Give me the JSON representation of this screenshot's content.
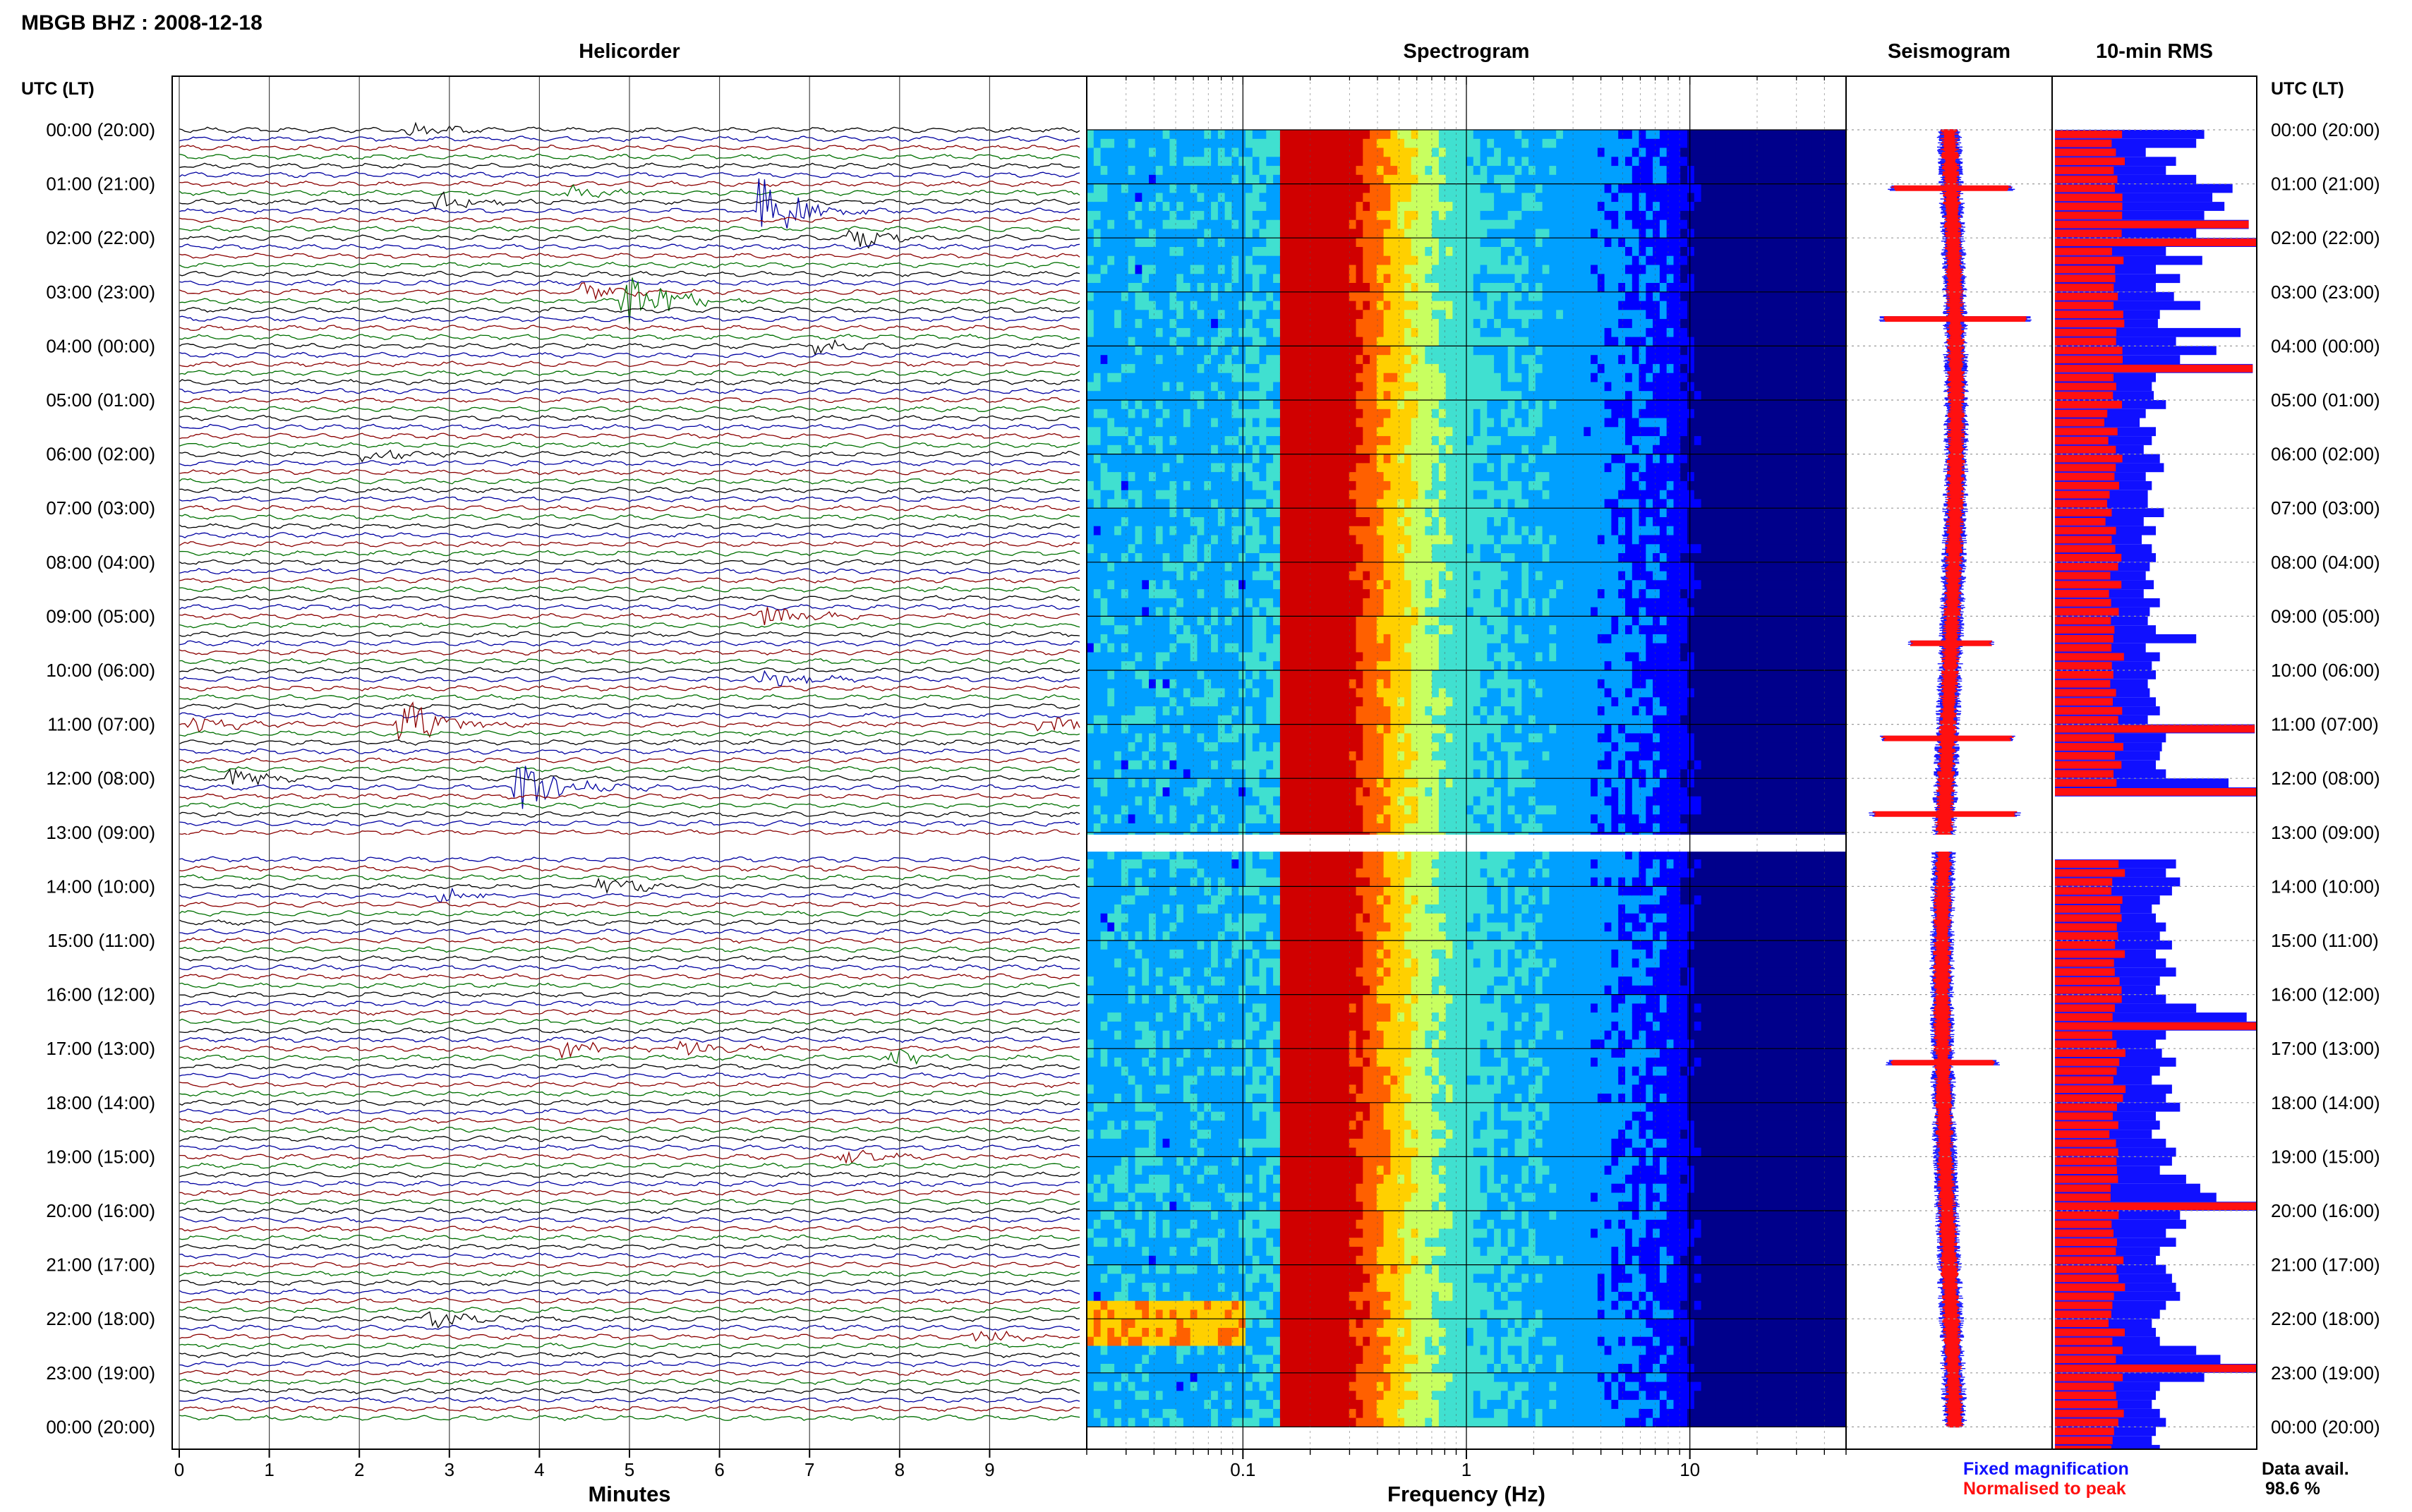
{
  "figure": {
    "title": "MBGB BHZ : 2008-12-18",
    "panel_titles": {
      "helicorder": "Helicorder",
      "spectrogram": "Spectrogram",
      "seismogram": "Seismogram",
      "rms": "10-min RMS"
    },
    "time_header_left": "UTC (LT)",
    "time_header_right": "UTC (LT)",
    "time_labels": [
      "00:00 (20:00)",
      "01:00 (21:00)",
      "02:00 (22:00)",
      "03:00 (23:00)",
      "04:00 (00:00)",
      "05:00 (01:00)",
      "06:00 (02:00)",
      "07:00 (03:00)",
      "08:00 (04:00)",
      "09:00 (05:00)",
      "10:00 (06:00)",
      "11:00 (07:00)",
      "12:00 (08:00)",
      "13:00 (09:00)",
      "14:00 (10:00)",
      "15:00 (11:00)",
      "16:00 (12:00)",
      "17:00 (13:00)",
      "18:00 (14:00)",
      "19:00 (15:00)",
      "20:00 (16:00)",
      "21:00 (17:00)",
      "22:00 (18:00)",
      "23:00 (19:00)",
      "00:00 (20:00)"
    ],
    "legend": {
      "fixed": "Fixed magnification",
      "normalised": "Normalised to peak",
      "fixed_color": "#1010ff",
      "normalised_color": "#ff1010"
    },
    "data_avail_label": "Data avail.",
    "data_avail_value": "98.6 %"
  },
  "chart_data": [
    {
      "type": "line",
      "panel": "helicorder",
      "xlabel": "Minutes",
      "x_ticks": [
        "0",
        "1",
        "2",
        "3",
        "4",
        "5",
        "6",
        "7",
        "8",
        "9"
      ],
      "xlim": [
        0,
        10
      ],
      "rows_per_hour": 6,
      "row_colors": [
        "#000000",
        "#0000a0",
        "#8b0000",
        "#007000"
      ],
      "events": [
        {
          "time": "00:00",
          "minute": 2.5,
          "row_offset": 0,
          "amp": 1.5
        },
        {
          "time": "01:00",
          "minute": 2.8,
          "row_offset": 2,
          "amp": 1.8
        },
        {
          "time": "01:00",
          "minute": 4.3,
          "row_offset": 1,
          "amp": 1.4
        },
        {
          "time": "01:00",
          "minute": 6.4,
          "row_offset": 3,
          "amp": 6.0
        },
        {
          "time": "02:00",
          "minute": 7.4,
          "row_offset": 0,
          "amp": 2.0
        },
        {
          "time": "03:00",
          "minute": 4.4,
          "row_offset": 0,
          "amp": 1.5
        },
        {
          "time": "03:00",
          "minute": 4.9,
          "row_offset": 1,
          "amp": 5.5
        },
        {
          "time": "04:00",
          "minute": 7.0,
          "row_offset": 0,
          "amp": 1.4
        },
        {
          "time": "06:00",
          "minute": 2.0,
          "row_offset": 0,
          "amp": 1.3
        },
        {
          "time": "09:00",
          "minute": 6.4,
          "row_offset": 0,
          "amp": 2.2
        },
        {
          "time": "10:00",
          "minute": 6.4,
          "row_offset": 1,
          "amp": 1.6
        },
        {
          "time": "11:00",
          "minute": 2.4,
          "row_offset": 0,
          "amp": 5.0
        },
        {
          "time": "11:00",
          "minute": 0.0,
          "row_offset": 0,
          "amp": 1.8
        },
        {
          "time": "11:00",
          "minute": 9.5,
          "row_offset": 0,
          "amp": 1.8
        },
        {
          "time": "12:00",
          "minute": 0.5,
          "row_offset": 0,
          "amp": 1.8
        },
        {
          "time": "12:00",
          "minute": 3.7,
          "row_offset": 1,
          "amp": 5.0
        },
        {
          "time": "14:00",
          "minute": 4.6,
          "row_offset": 0,
          "amp": 1.6
        },
        {
          "time": "14:00",
          "minute": 2.8,
          "row_offset": 1,
          "amp": 1.3
        },
        {
          "time": "17:00",
          "minute": 4.2,
          "row_offset": 0,
          "amp": 1.6
        },
        {
          "time": "17:00",
          "minute": 5.5,
          "row_offset": 0,
          "amp": 2.0
        },
        {
          "time": "17:00",
          "minute": 7.8,
          "row_offset": 1,
          "amp": 1.8
        },
        {
          "time": "19:00",
          "minute": 7.3,
          "row_offset": 0,
          "amp": 1.4
        },
        {
          "time": "22:00",
          "minute": 2.7,
          "row_offset": 0,
          "amp": 2.0
        },
        {
          "time": "22:00",
          "minute": 8.8,
          "row_offset": 2,
          "amp": 1.4
        }
      ]
    },
    {
      "type": "heatmap",
      "panel": "spectrogram",
      "xlabel": "Frequency (Hz)",
      "x_scale": "log",
      "x_ticks": [
        "0.1",
        "1",
        "10"
      ],
      "xlim": [
        0.02,
        50
      ],
      "colormap": [
        "#00008b",
        "#0000ff",
        "#00a0ff",
        "#40e0d0",
        "#c8ff60",
        "#ffd000",
        "#ff6000",
        "#d00000"
      ],
      "features": {
        "microseism_peak_hz": 0.2,
        "high_energy_band_hz": [
          0.15,
          0.35
        ],
        "low_noise_band_hz": [
          0.02,
          0.1
        ],
        "rolloff_hz": 8,
        "burst_lowfreq_time": "22:00"
      }
    },
    {
      "type": "line",
      "panel": "seismogram",
      "series": [
        {
          "name": "Fixed magnification",
          "color": "#1010ff"
        },
        {
          "name": "Normalised to peak",
          "color": "#ff1010"
        }
      ],
      "spikes": [
        {
          "time": "01:05",
          "amp": 4.0
        },
        {
          "time": "03:30",
          "amp": 5.0
        },
        {
          "time": "09:30",
          "amp": 2.5
        },
        {
          "time": "11:15",
          "amp": 4.5
        },
        {
          "time": "12:40",
          "amp": 5.0
        },
        {
          "time": "17:15",
          "amp": 3.5
        }
      ]
    },
    {
      "type": "bar",
      "panel": "rms",
      "orientation": "horizontal",
      "ylabel": "10-min RMS",
      "series": [
        {
          "name": "Fixed magnification",
          "color": "#1010ff"
        },
        {
          "name": "Normalised to peak",
          "color": "#ff1010"
        }
      ],
      "blocks": [
        {
          "start": "00:00",
          "values": [
            0.74,
            0.7,
            0.45,
            0.6,
            0.55,
            0.7,
            0.88,
            0.78,
            0.84,
            0.74,
            0.96,
            0.7,
            1.0
          ]
        },
        {
          "start": "02:10",
          "values": [
            0.55,
            0.73,
            0.5,
            0.62,
            0.5,
            0.59,
            0.72,
            0.52,
            0.51,
            0.92,
            0.6,
            0.8,
            0.62,
            0.98
          ]
        },
        {
          "start": "04:30",
          "values": [
            0.5,
            0.48,
            0.49,
            0.55,
            0.45,
            0.42,
            0.5,
            0.48,
            0.44,
            0.52,
            0.54,
            0.45,
            0.48,
            0.46
          ]
        },
        {
          "start": "06:50",
          "values": [
            0.46,
            0.54,
            0.44,
            0.5,
            0.43,
            0.48,
            0.5,
            0.47,
            0.45,
            0.49,
            0.44,
            0.52,
            0.47,
            0.46,
            0.5,
            0.7
          ]
        },
        {
          "start": "09:30",
          "values": [
            0.45,
            0.52,
            0.48,
            0.5,
            0.46,
            0.47,
            0.5,
            0.52,
            0.46,
            0.99,
            0.55,
            0.53,
            0.52,
            0.5,
            0.55,
            0.86,
            1.0
          ]
        },
        {
          "start": "13:20",
          "values": [
            0.5,
            0.6,
            0.55,
            0.62,
            0.58,
            0.52,
            0.48,
            0.5,
            0.55,
            0.52,
            0.58,
            0.5,
            0.55,
            0.6,
            0.52,
            0.5,
            0.55,
            0.7,
            0.95,
            1.0
          ]
        },
        {
          "start": "16:40",
          "values": [
            0.55,
            0.5,
            0.53,
            0.6,
            0.52,
            0.48,
            0.58,
            0.55,
            0.62,
            0.5,
            0.52,
            0.48,
            0.55,
            0.6,
            0.58,
            0.52,
            0.65,
            0.72,
            0.8,
            1.0,
            0.62,
            0.65,
            0.55,
            0.6,
            0.52,
            0.5,
            0.55,
            0.58,
            0.6,
            0.62,
            0.55,
            0.52,
            0.48,
            0.5,
            0.52,
            0.7,
            0.82,
            1.0,
            0.74,
            0.52,
            0.5,
            0.48,
            0.52,
            0.55,
            0.5,
            0.48,
            0.52,
            0.55
          ]
        }
      ]
    }
  ]
}
